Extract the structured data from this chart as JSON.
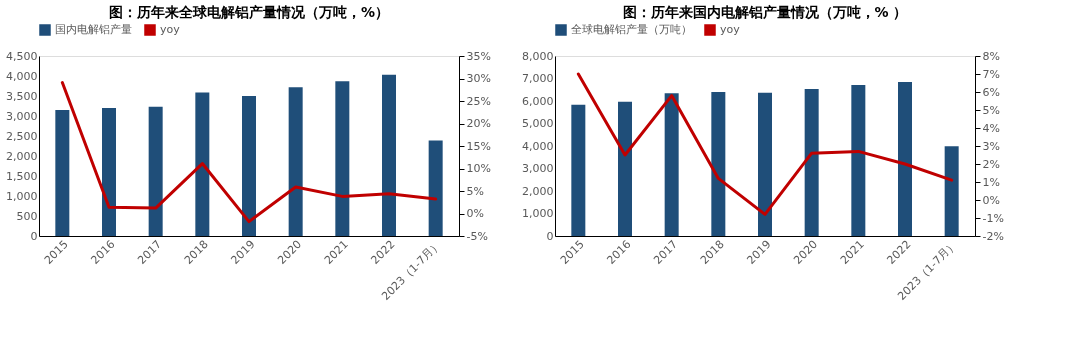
{
  "chart_data": [
    {
      "type": "bar",
      "title": "图：历年来全球电解铝产量情况（万吨，%）",
      "categories": [
        "2015",
        "2016",
        "2017",
        "2018",
        "2019",
        "2020",
        "2021",
        "2022",
        "2023（1-7月）"
      ],
      "series": [
        {
          "name": "国内电解铝产量",
          "color": "#1f4e79",
          "values": [
            3150,
            3200,
            3230,
            3590,
            3500,
            3720,
            3870,
            4030,
            2390
          ]
        },
        {
          "name": "yoy",
          "type": "line",
          "axis": "y2",
          "color": "#c00000",
          "values": [
            29.1,
            1.4,
            1.2,
            11.1,
            -1.8,
            5.9,
            3.8,
            4.4,
            3.2
          ]
        }
      ],
      "ylim": [
        0,
        4500
      ],
      "yticks": [
        0,
        500,
        {
          "value": 1000,
          "label": "1,000"
        },
        {
          "value": 1500,
          "label": "1,500"
        },
        {
          "value": 2000,
          "label": "2,000"
        },
        {
          "value": 2500,
          "label": "2,500"
        },
        {
          "value": 3000,
          "label": "3,000"
        },
        {
          "value": 3500,
          "label": "3,500"
        },
        {
          "value": 4000,
          "label": "4,000"
        },
        {
          "value": 4500,
          "label": "4,500"
        }
      ],
      "y2lim": [
        -5,
        35
      ],
      "y2ticks": [
        {
          "value": -5,
          "label": "-5%"
        },
        {
          "value": 0,
          "label": "0%"
        },
        {
          "value": 5,
          "label": "5%"
        },
        {
          "value": 10,
          "label": "10%"
        },
        {
          "value": 15,
          "label": "15%"
        },
        {
          "value": 20,
          "label": "20%"
        },
        {
          "value": 25,
          "label": "25%"
        },
        {
          "value": 30,
          "label": "30%"
        },
        {
          "value": 35,
          "label": "35%"
        }
      ],
      "legend": "top",
      "grid": false
    },
    {
      "type": "bar",
      "title": "图：历年来国内电解铝产量情况（万吨，% ）",
      "categories": [
        "2015",
        "2016",
        "2017",
        "2018",
        "2019",
        "2020",
        "2021",
        "2022",
        "2023（1-7月）"
      ],
      "series": [
        {
          "name": "全球电解铝产量（万吨）",
          "color": "#1f4e79",
          "values": [
            5830,
            5970,
            6340,
            6400,
            6370,
            6530,
            6710,
            6840,
            3990
          ]
        },
        {
          "name": "yoy",
          "type": "line",
          "axis": "y2",
          "color": "#c00000",
          "values": [
            7.0,
            2.5,
            5.8,
            1.2,
            -0.8,
            2.6,
            2.7,
            2.0,
            1.1
          ]
        }
      ],
      "ylim": [
        0,
        8000
      ],
      "yticks": [
        0,
        {
          "value": 1000,
          "label": "1,000"
        },
        {
          "value": 2000,
          "label": "2,000"
        },
        {
          "value": 3000,
          "label": "3,000"
        },
        {
          "value": 4000,
          "label": "4,000"
        },
        {
          "value": 5000,
          "label": "5,000"
        },
        {
          "value": 6000,
          "label": "6,000"
        },
        {
          "value": 7000,
          "label": "7,000"
        },
        {
          "value": 8000,
          "label": "8,000"
        }
      ],
      "y2lim": [
        -2,
        8
      ],
      "y2ticks": [
        {
          "value": -2,
          "label": "-2%"
        },
        {
          "value": -1,
          "label": "-1%"
        },
        {
          "value": 0,
          "label": "0%"
        },
        {
          "value": 1,
          "label": "1%"
        },
        {
          "value": 2,
          "label": "2%"
        },
        {
          "value": 3,
          "label": "3%"
        },
        {
          "value": 4,
          "label": "4%"
        },
        {
          "value": 5,
          "label": "5%"
        },
        {
          "value": 6,
          "label": "6%"
        },
        {
          "value": 7,
          "label": "7%"
        },
        {
          "value": 8,
          "label": "8%"
        }
      ],
      "legend": "top",
      "grid": false
    }
  ]
}
